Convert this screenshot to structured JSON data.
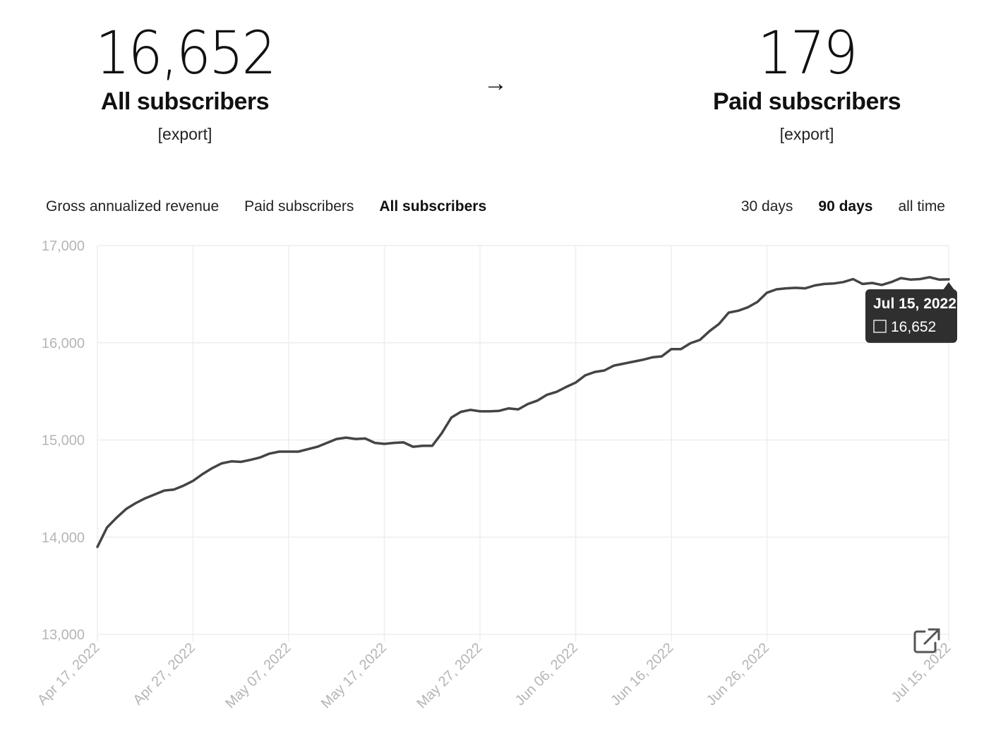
{
  "stats": {
    "all": {
      "number": "16,652",
      "label": "All subscribers",
      "export": "[export]"
    },
    "arrow": "→",
    "paid": {
      "number": "179",
      "label": "Paid subscribers",
      "export": "[export]"
    }
  },
  "metric_tabs": [
    {
      "label": "Gross annualized revenue",
      "active": false
    },
    {
      "label": "Paid subscribers",
      "active": false
    },
    {
      "label": "All subscribers",
      "active": true
    }
  ],
  "range_tabs": [
    {
      "label": "30 days",
      "active": false
    },
    {
      "label": "90 days",
      "active": true
    },
    {
      "label": "all time",
      "active": false
    }
  ],
  "tooltip": {
    "date": "Jul 15, 2022",
    "value": "16,652"
  },
  "colors": {
    "line": "#444444",
    "grid": "#eeeeee",
    "tick": "#b5b5b5",
    "tooltip_bg": "#2f2f2f"
  },
  "chart_data": {
    "type": "line",
    "title": "",
    "xlabel": "",
    "ylabel": "",
    "ylim": [
      13000,
      17000
    ],
    "yticks": [
      13000,
      14000,
      15000,
      16000,
      17000
    ],
    "ytick_labels": [
      "13,000",
      "14,000",
      "15,000",
      "16,000",
      "17,000"
    ],
    "xticks": [
      "2022-04-17",
      "2022-04-27",
      "2022-05-07",
      "2022-05-17",
      "2022-05-27",
      "2022-06-06",
      "2022-06-16",
      "2022-06-26",
      "2022-07-15"
    ],
    "xtick_labels": [
      "Apr 17, 2022",
      "Apr 27, 2022",
      "May 07, 2022",
      "May 17, 2022",
      "May 27, 2022",
      "Jun 06, 2022",
      "Jun 16, 2022",
      "Jun 26, 2022",
      "Jul 15, 2022"
    ],
    "grid": true,
    "series": [
      {
        "x": [
          "2022-04-17",
          "2022-04-18",
          "2022-04-19",
          "2022-04-20",
          "2022-04-21",
          "2022-04-22",
          "2022-04-23",
          "2022-04-24",
          "2022-04-25",
          "2022-04-26",
          "2022-04-27",
          "2022-04-28",
          "2022-04-29",
          "2022-04-30",
          "2022-05-01",
          "2022-05-02",
          "2022-05-03",
          "2022-05-04",
          "2022-05-05",
          "2022-05-06",
          "2022-05-07",
          "2022-05-08",
          "2022-05-09",
          "2022-05-10",
          "2022-05-11",
          "2022-05-12",
          "2022-05-13",
          "2022-05-14",
          "2022-05-15",
          "2022-05-16",
          "2022-05-17",
          "2022-05-18",
          "2022-05-19",
          "2022-05-20",
          "2022-05-21",
          "2022-05-22",
          "2022-05-23",
          "2022-05-24",
          "2022-05-25",
          "2022-05-26",
          "2022-05-27",
          "2022-05-28",
          "2022-05-29",
          "2022-05-30",
          "2022-05-31",
          "2022-06-01",
          "2022-06-02",
          "2022-06-03",
          "2022-06-04",
          "2022-06-05",
          "2022-06-06",
          "2022-06-07",
          "2022-06-08",
          "2022-06-09",
          "2022-06-10",
          "2022-06-11",
          "2022-06-12",
          "2022-06-13",
          "2022-06-14",
          "2022-06-15",
          "2022-06-16",
          "2022-06-17",
          "2022-06-18",
          "2022-06-19",
          "2022-06-20",
          "2022-06-21",
          "2022-06-22",
          "2022-06-23",
          "2022-06-24",
          "2022-06-25",
          "2022-06-26",
          "2022-06-27",
          "2022-06-28",
          "2022-06-29",
          "2022-06-30",
          "2022-07-01",
          "2022-07-02",
          "2022-07-03",
          "2022-07-04",
          "2022-07-05",
          "2022-07-06",
          "2022-07-07",
          "2022-07-08",
          "2022-07-09",
          "2022-07-10",
          "2022-07-11",
          "2022-07-12",
          "2022-07-13",
          "2022-07-14",
          "2022-07-15"
        ],
        "y": [
          13900,
          14100,
          14200,
          14290,
          14350,
          14400,
          14440,
          14480,
          14490,
          14530,
          14580,
          14650,
          14710,
          14760,
          14780,
          14775,
          14795,
          14820,
          14860,
          14880,
          14880,
          14880,
          14905,
          14930,
          14970,
          15010,
          15025,
          15010,
          15015,
          14970,
          14960,
          14970,
          14975,
          14930,
          14940,
          14940,
          15070,
          15230,
          15290,
          15310,
          15295,
          15295,
          15300,
          15325,
          15315,
          15370,
          15405,
          15465,
          15495,
          15545,
          15590,
          15665,
          15700,
          15715,
          15765,
          15785,
          15805,
          15825,
          15850,
          15860,
          15935,
          15935,
          15995,
          16030,
          16120,
          16195,
          16310,
          16330,
          16365,
          16420,
          16515,
          16550,
          16560,
          16565,
          16560,
          16590,
          16605,
          16610,
          16625,
          16655,
          16605,
          16615,
          16595,
          16625,
          16665,
          16650,
          16655,
          16675,
          16650,
          16652
        ]
      }
    ]
  }
}
